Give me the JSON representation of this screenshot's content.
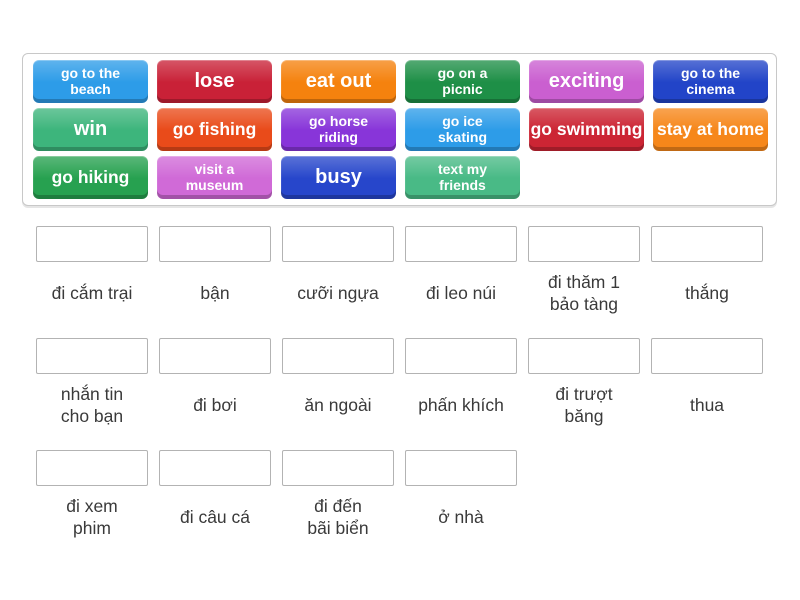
{
  "activity": {
    "type_hint": "match-up drag and drop",
    "page_background": "#ffffff"
  },
  "tiles": [
    {
      "label": "go to the\nbeach",
      "color": "#2d9ce8"
    },
    {
      "label": "lose",
      "color": "#c92137"
    },
    {
      "label": "eat out",
      "color": "#f5820e"
    },
    {
      "label": "go on a\npicnic",
      "color": "#1e8f47"
    },
    {
      "label": "exciting",
      "color": "#ca5fd0"
    },
    {
      "label": "go to the\ncinema",
      "color": "#2244c8"
    },
    {
      "label": "win",
      "color": "#3db57c"
    },
    {
      "label": "go fishing",
      "color": "#e94b1a"
    },
    {
      "label": "go horse\nriding",
      "color": "#8835d9"
    },
    {
      "label": "go ice\nskating",
      "color": "#2d9ce8"
    },
    {
      "label": "go swimming",
      "color": "#cc2534"
    },
    {
      "label": "stay at home",
      "color": "#f6871a"
    },
    {
      "label": "go hiking",
      "color": "#27a150"
    },
    {
      "label": "visit a\nmuseum",
      "color": "#d06ad7"
    },
    {
      "label": "busy",
      "color": "#2746cb"
    },
    {
      "label": "text my\nfriends",
      "color": "#49ba86"
    }
  ],
  "targets": [
    "đi cắm trại",
    "bận",
    "cưỡi ngựa",
    "đi leo núi",
    "đi thăm 1\nbảo tàng",
    "thắng",
    "nhắn tin\ncho bạn",
    "đi bơi",
    "ăn ngoài",
    "phấn khích",
    "đi trượt\nbăng",
    "thua",
    "đi xem\nphim",
    "đi câu cá",
    "đi đến\nbãi biển",
    "ở nhà"
  ]
}
